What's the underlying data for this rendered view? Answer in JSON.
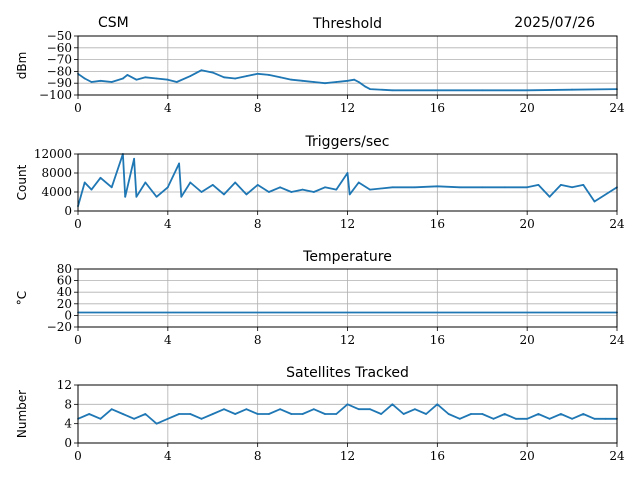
{
  "header": {
    "left_title": "CSM",
    "right_title": "2025/07/26"
  },
  "colors": {
    "series": "#1f77b4",
    "grid": "#b0b0b0",
    "frame": "#000000"
  },
  "chart_data": [
    {
      "type": "line",
      "title": "Threshold",
      "ylabel": "dBm",
      "xlabel": "",
      "xlim": [
        0,
        24
      ],
      "ylim": [
        -100,
        -50
      ],
      "xticks": [
        0,
        4,
        8,
        12,
        16,
        20,
        24
      ],
      "yticks": [
        -100,
        -90,
        -80,
        -70,
        -60,
        -50
      ],
      "ytick_labels": [
        "−100",
        "−90",
        "−80",
        "−70",
        "−60",
        "−50"
      ],
      "grid": true,
      "series": [
        {
          "x": [
            0,
            0.3,
            0.6,
            1,
            1.5,
            2,
            2.2,
            2.6,
            3,
            3.5,
            4,
            4.4,
            5,
            5.5,
            6,
            6.5,
            7,
            7.5,
            8,
            8.5,
            9,
            9.5,
            10,
            10.5,
            11,
            11.5,
            12,
            12.3,
            12.5,
            12.8,
            13,
            14,
            16,
            18,
            20,
            22,
            24
          ],
          "y": [
            -82,
            -86,
            -89,
            -88,
            -89,
            -86,
            -83,
            -87,
            -85,
            -86,
            -87,
            -89,
            -84,
            -79,
            -81,
            -85,
            -86,
            -84,
            -82,
            -83,
            -85,
            -87,
            -88,
            -89,
            -90,
            -89,
            -88,
            -87,
            -89,
            -93,
            -95,
            -96,
            -96,
            -96,
            -96,
            -95.5,
            -95
          ]
        }
      ]
    },
    {
      "type": "line",
      "title": "Triggers/sec",
      "ylabel": "Count",
      "xlabel": "",
      "xlim": [
        0,
        24
      ],
      "ylim": [
        0,
        12000
      ],
      "xticks": [
        0,
        4,
        8,
        12,
        16,
        20,
        24
      ],
      "yticks": [
        0,
        4000,
        8000,
        12000
      ],
      "ytick_labels": [
        "0",
        "4000",
        "8000",
        "12000"
      ],
      "grid": true,
      "series": [
        {
          "x": [
            0,
            0.3,
            0.6,
            1,
            1.5,
            2,
            2.1,
            2.5,
            2.6,
            3,
            3.5,
            4,
            4.5,
            4.6,
            5,
            5.5,
            6,
            6.5,
            7,
            7.5,
            8,
            8.5,
            9,
            9.5,
            10,
            10.5,
            11,
            11.5,
            12,
            12.1,
            12.5,
            13,
            14,
            15,
            16,
            17,
            18,
            19,
            20,
            20.5,
            21,
            21.5,
            22,
            22.5,
            23,
            24
          ],
          "y": [
            1000,
            6000,
            4500,
            7000,
            5000,
            12000,
            3000,
            11000,
            3000,
            6000,
            3000,
            5000,
            10000,
            3000,
            6000,
            4000,
            5500,
            3500,
            6000,
            3500,
            5500,
            4000,
            5000,
            4000,
            4500,
            4000,
            5000,
            4500,
            8000,
            3500,
            6000,
            4500,
            5000,
            5000,
            5200,
            5000,
            5000,
            5000,
            5000,
            5500,
            3000,
            5500,
            5000,
            5500,
            2000,
            5000
          ]
        }
      ]
    },
    {
      "type": "line",
      "title": "Temperature",
      "ylabel": "°C",
      "xlabel": "",
      "xlim": [
        0,
        24
      ],
      "ylim": [
        -20,
        80
      ],
      "xticks": [
        0,
        4,
        8,
        12,
        16,
        20,
        24
      ],
      "yticks": [
        -20,
        0,
        20,
        40,
        60,
        80
      ],
      "ytick_labels": [
        "−20",
        "0",
        "20",
        "40",
        "60",
        "80"
      ],
      "grid": true,
      "series": [
        {
          "x": [
            0,
            24
          ],
          "y": [
            5,
            5
          ]
        }
      ]
    },
    {
      "type": "line",
      "title": "Satellites Tracked",
      "ylabel": "Number",
      "xlabel": "",
      "xlim": [
        0,
        24
      ],
      "ylim": [
        0,
        12
      ],
      "xticks": [
        0,
        4,
        8,
        12,
        16,
        20,
        24
      ],
      "yticks": [
        0,
        4,
        8,
        12
      ],
      "ytick_labels": [
        "0",
        "4",
        "8",
        "12"
      ],
      "grid": true,
      "series": [
        {
          "x": [
            0,
            0.5,
            1,
            1.5,
            2,
            2.5,
            3,
            3.5,
            4,
            4.5,
            5,
            5.5,
            6,
            6.5,
            7,
            7.5,
            8,
            8.5,
            9,
            9.5,
            10,
            10.5,
            11,
            11.5,
            12,
            12.5,
            13,
            13.5,
            14,
            14.5,
            15,
            15.5,
            16,
            16.5,
            17,
            17.5,
            18,
            18.5,
            19,
            19.5,
            20,
            20.5,
            21,
            21.5,
            22,
            22.5,
            23,
            23.5,
            24
          ],
          "y": [
            5,
            6,
            5,
            7,
            6,
            5,
            6,
            4,
            5,
            6,
            6,
            5,
            6,
            7,
            6,
            7,
            6,
            6,
            7,
            6,
            6,
            7,
            6,
            6,
            8,
            7,
            7,
            6,
            8,
            6,
            7,
            6,
            8,
            6,
            5,
            6,
            6,
            5,
            6,
            5,
            5,
            6,
            5,
            6,
            5,
            6,
            5,
            5,
            5
          ]
        }
      ]
    }
  ]
}
